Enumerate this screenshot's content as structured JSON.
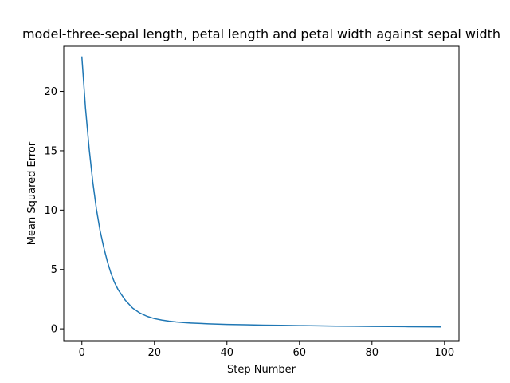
{
  "chart_data": {
    "type": "line",
    "title": "model-three-sepal length, petal length and petal width against sepal width",
    "xlabel": "Step Number",
    "ylabel": "Mean Squared Error",
    "xlim": [
      -5,
      104
    ],
    "ylim": [
      -1,
      23.8
    ],
    "grid": false,
    "xticks": [
      0,
      20,
      40,
      60,
      80,
      100
    ],
    "yticks": [
      0,
      5,
      10,
      15,
      20
    ],
    "line_color": "#1f77b4",
    "series": [
      {
        "x": [
          0,
          1,
          2,
          3,
          4,
          5,
          6,
          7,
          8,
          9,
          10,
          12,
          14,
          16,
          18,
          20,
          22,
          24,
          26,
          28,
          30,
          35,
          40,
          45,
          50,
          55,
          60,
          65,
          70,
          75,
          80,
          85,
          90,
          95,
          99
        ],
        "values": [
          22.9,
          18.6,
          15.2,
          12.4,
          10.1,
          8.3,
          6.9,
          5.7,
          4.7,
          3.9,
          3.3,
          2.4,
          1.75,
          1.33,
          1.05,
          0.86,
          0.74,
          0.65,
          0.58,
          0.53,
          0.49,
          0.42,
          0.37,
          0.34,
          0.31,
          0.29,
          0.27,
          0.25,
          0.23,
          0.22,
          0.2,
          0.19,
          0.18,
          0.17,
          0.16
        ]
      }
    ]
  }
}
